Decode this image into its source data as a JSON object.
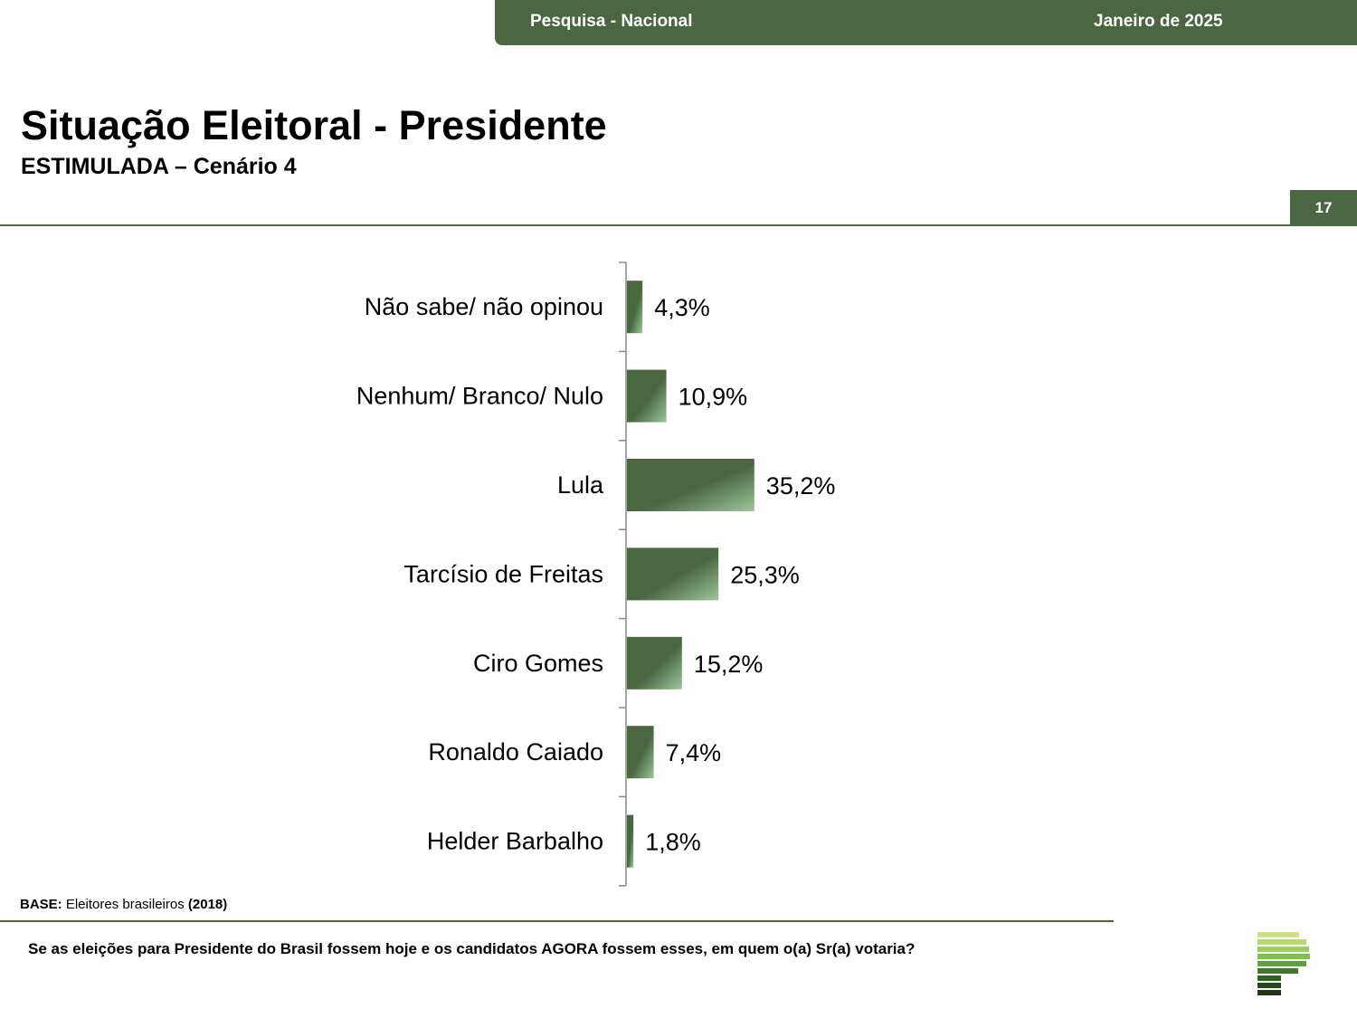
{
  "header": {
    "left_label": "Pesquisa - Nacional",
    "right_label": "Janeiro de 2025"
  },
  "title": "Situação Eleitoral - Presidente",
  "subtitle": "ESTIMULADA – Cenário 4",
  "page_number": "17",
  "footer": {
    "base_label": "BASE:",
    "base_text": " Eleitores brasileiros ",
    "base_year": "(2018)",
    "question": "Se as eleições para Presidente do Brasil fossem hoje e os candidatos AGORA fossem esses, em quem o(a) Sr(a) votaria?"
  },
  "colors": {
    "accent": "#4a6741",
    "bar_start": "#4a6741",
    "bar_end": "#9cc79a"
  },
  "chart_data": {
    "type": "bar",
    "orientation": "horizontal",
    "categories": [
      "Não sabe/ não opinou",
      "Nenhum/ Branco/ Nulo",
      "Lula",
      "Tarcísio de Freitas",
      "Ciro Gomes",
      "Ronaldo Caiado",
      "Helder Barbalho"
    ],
    "values": [
      4.3,
      10.9,
      35.2,
      25.3,
      15.2,
      7.4,
      1.8
    ],
    "value_labels": [
      "4,3%",
      "10,9%",
      "35,2%",
      "25,3%",
      "15,2%",
      "7,4%",
      "1,8%"
    ],
    "xlim": [
      0,
      100
    ],
    "grid": false,
    "legend": "none"
  }
}
